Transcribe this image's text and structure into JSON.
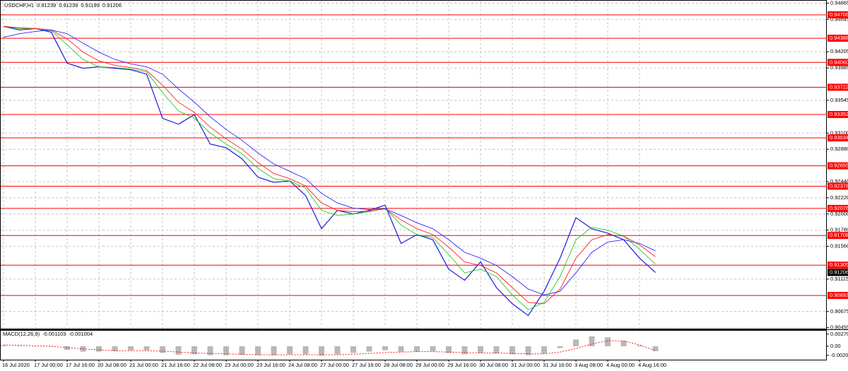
{
  "chart_data": [
    {
      "type": "line",
      "title": "USDCHF,H1",
      "last_bar": {
        "open": 0.91239,
        "high": 0.91239,
        "low": 0.91199
      },
      "categories": [
        "16 Jul 2020",
        null,
        "17 Jul 00:00",
        null,
        "17 Jul 16:00",
        null,
        "20 Jul 08:00",
        null,
        "21 Jul 00:00",
        null,
        "21 Jul 16:00",
        null,
        "22 Jul 08:00",
        null,
        "23 Jul 00:00",
        null,
        "23 Jul 16:00",
        null,
        "24 Jul 08:00",
        null,
        "27 Jul 00:00",
        null,
        "27 Jul 16:00",
        null,
        "28 Jul 08:00",
        null,
        "29 Jul 00:00",
        null,
        "29 Jul 16:00",
        null,
        "30 Jul 08:00",
        null,
        "31 Jul 00:00",
        null,
        "31 Jul 16:00",
        null,
        "3 Aug 08:00",
        null,
        "4 Aug 00:00",
        null,
        "4 Aug 16:00",
        null
      ],
      "series": [
        {
          "color": "#1c1cdc",
          "values": [
            0.9455,
            0.945,
            0.9452,
            0.9447,
            0.9405,
            0.9398,
            0.94,
            0.9398,
            0.9396,
            0.939,
            0.933,
            0.9322,
            0.9335,
            0.9295,
            0.929,
            0.9275,
            0.925,
            0.9243,
            0.9245,
            0.9225,
            0.918,
            0.9205,
            0.92,
            0.9205,
            0.9212,
            0.916,
            0.9172,
            0.9165,
            0.9125,
            0.911,
            0.9135,
            0.91,
            0.9078,
            0.9062,
            0.9095,
            0.914,
            0.9195,
            0.918,
            0.9174,
            0.9165,
            0.914,
            0.91206
          ]
        },
        {
          "color": "#22cc22",
          "values": [
            0.9455,
            0.9452,
            0.9452,
            0.9449,
            0.943,
            0.941,
            0.94,
            0.9399,
            0.9397,
            0.9393,
            0.9365,
            0.934,
            0.933,
            0.931,
            0.9295,
            0.9282,
            0.9262,
            0.9248,
            0.9245,
            0.9235,
            0.9205,
            0.9198,
            0.92,
            0.9203,
            0.9208,
            0.9185,
            0.9172,
            0.9168,
            0.9145,
            0.912,
            0.9125,
            0.9115,
            0.909,
            0.907,
            0.908,
            0.9115,
            0.9165,
            0.9182,
            0.9178,
            0.917,
            0.9152,
            0.9132
          ]
        },
        {
          "color": "#ff2020",
          "values": [
            0.9455,
            0.9453,
            0.9452,
            0.945,
            0.9438,
            0.942,
            0.9408,
            0.9402,
            0.9399,
            0.9395,
            0.9375,
            0.9352,
            0.9338,
            0.9318,
            0.9302,
            0.9288,
            0.927,
            0.9255,
            0.9248,
            0.9238,
            0.9215,
            0.9205,
            0.9203,
            0.9204,
            0.9207,
            0.9192,
            0.918,
            0.9172,
            0.9155,
            0.9135,
            0.913,
            0.912,
            0.91,
            0.908,
            0.9078,
            0.9098,
            0.914,
            0.9165,
            0.9172,
            0.917,
            0.9158,
            0.9142
          ]
        },
        {
          "color": "#2a2aff",
          "values": [
            0.944,
            0.9445,
            0.9448,
            0.945,
            0.9445,
            0.9432,
            0.942,
            0.941,
            0.9404,
            0.94,
            0.939,
            0.937,
            0.9352,
            0.9332,
            0.9315,
            0.93,
            0.9283,
            0.9268,
            0.9258,
            0.9248,
            0.9228,
            0.9215,
            0.9208,
            0.9206,
            0.9207,
            0.9198,
            0.9188,
            0.918,
            0.9165,
            0.9148,
            0.914,
            0.913,
            0.9115,
            0.9098,
            0.909,
            0.9095,
            0.912,
            0.9148,
            0.9162,
            0.9165,
            0.916,
            0.915
          ]
        }
      ],
      "levels": [
        0.94706,
        0.94388,
        {
          "value": 0.9406,
          "label": "0.94060"
        },
        0.93722,
        0.93352,
        0.93034,
        0.92655,
        0.92378,
        0.92076,
        0.91708,
        0.91305,
        0.90893
      ],
      "level_color": "#ff0000",
      "ylim": [
        0.90443,
        0.94898
      ],
      "yticks": [
        0.94865,
        0.94645,
        0.94205,
        0.93985,
        0.93545,
        {
          "value": 0.931,
          "label": "0.93100"
        },
        {
          "value": 0.9288,
          "label": "0.92880"
        },
        {
          "value": 0.9244,
          "label": "0.92440"
        },
        {
          "value": 0.9222,
          "label": "0.92220"
        },
        {
          "value": 0.92,
          "label": "0.92000"
        },
        {
          "value": 0.9178,
          "label": "0.91780"
        },
        {
          "value": 0.9156,
          "label": "0.91560"
        },
        0.91115,
        0.90675,
        0.90455
      ],
      "grid": true
    },
    {
      "type": "macd",
      "title": "MACD(12,26,9)",
      "series": [
        {
          "kind": "bar",
          "color": "#b8b8b8",
          "values": [
            0.0002,
            0.0001,
            0,
            -0.0001,
            -0.0008,
            -0.0012,
            -0.0012,
            -0.0011,
            -0.0009,
            -0.0009,
            -0.0015,
            -0.0019,
            -0.0018,
            -0.002,
            -0.002,
            -0.0019,
            -0.002,
            -0.002,
            -0.0018,
            -0.0018,
            -0.0021,
            -0.0018,
            -0.0015,
            -0.0012,
            -0.0009,
            -0.0012,
            -0.0012,
            -0.0011,
            -0.0015,
            -0.0018,
            -0.0015,
            -0.0016,
            -0.0018,
            -0.002,
            -0.0016,
            -0.0004,
            0.0015,
            0.0022,
            0.002,
            0.0012,
            0.0002,
            -0.001103
          ]
        },
        {
          "kind": "dotted",
          "color": "#ff0000",
          "values": [
            0.0003,
            0.0002,
            0.0001,
            0,
            -0.0003,
            -0.0006,
            -0.0008,
            -0.001,
            -0.001,
            -0.001,
            -0.0011,
            -0.0013,
            -0.0015,
            -0.0016,
            -0.0017,
            -0.0018,
            -0.0019,
            -0.0019,
            -0.0019,
            -0.0019,
            -0.0019,
            -0.0019,
            -0.0018,
            -0.0016,
            -0.0014,
            -0.0013,
            -0.0012,
            -0.0012,
            -0.0013,
            -0.0014,
            -0.0015,
            -0.0015,
            -0.0016,
            -0.0017,
            -0.0017,
            -0.0013,
            -0.0005,
            0.0005,
            0.0012,
            0.0012,
            0.0003,
            -0.001004
          ]
        }
      ],
      "ylim": [
        -0.003,
        0.00346
      ],
      "yticks": [
        0.002707,
        {
          "value": 0,
          "label": "0.00"
        },
        -0.002026
      ]
    }
  ]
}
